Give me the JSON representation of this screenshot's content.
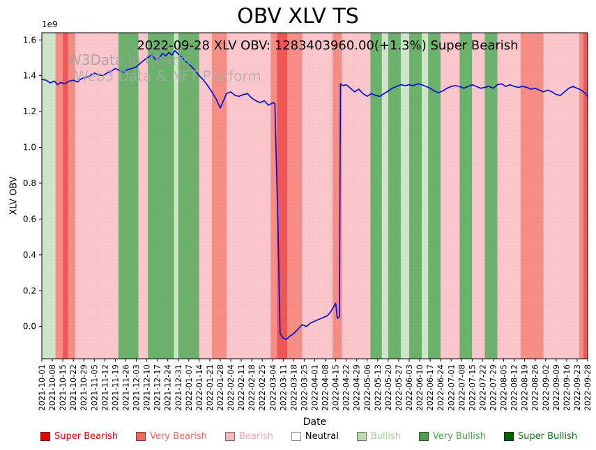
{
  "title": "OBV XLV TS",
  "annotation": "2022-09-28 XLV OBV: 1283403960.00(+1.3%) Super Bearish",
  "watermark": {
    "line1": "W3Data.io Charts",
    "line2": "Web3 Data & NFT Platform"
  },
  "axes": {
    "x_label": "Date",
    "y_label": "XLV OBV",
    "y_offset": "1e9",
    "y_ticks": [
      "0.0",
      "0.2",
      "0.4",
      "0.6",
      "0.8",
      "1.0",
      "1.2",
      "1.4",
      "1.6"
    ]
  },
  "legend": {
    "items": [
      {
        "label": "Super Bearish",
        "color": "#e60000",
        "text_color": "#e60000"
      },
      {
        "label": "Very Bearish",
        "color": "#f4665f",
        "text_color": "#f4665f"
      },
      {
        "label": "Bearish",
        "color": "#f7b6be",
        "text_color": "#f0a4ae"
      },
      {
        "label": "Neutral",
        "color": "#ffffff",
        "text_color": "#000000"
      },
      {
        "label": "Bullish",
        "color": "#b7dcb0",
        "text_color": "#a6cf9e"
      },
      {
        "label": "Very Bullish",
        "color": "#4e9e4e",
        "text_color": "#4e9e4e"
      },
      {
        "label": "Super Bullish",
        "color": "#006400",
        "text_color": "#0a7a0a"
      }
    ]
  },
  "chart_data": {
    "type": "line",
    "title": "OBV XLV TS",
    "xlabel": "Date",
    "ylabel": "XLV OBV",
    "y_unit": "1e9",
    "ylim": [
      -0.18,
      1.64
    ],
    "grid": false,
    "legend_position": "bottom",
    "x_tick_labels": [
      "2021-10-01",
      "2021-10-08",
      "2021-10-15",
      "2021-10-22",
      "2021-10-29",
      "2021-11-05",
      "2021-11-12",
      "2021-11-19",
      "2021-11-26",
      "2021-12-03",
      "2021-12-10",
      "2021-12-17",
      "2021-12-24",
      "2021-12-31",
      "2022-01-07",
      "2022-01-14",
      "2022-01-21",
      "2022-01-28",
      "2022-02-04",
      "2022-02-11",
      "2022-02-18",
      "2022-02-25",
      "2022-03-04",
      "2022-03-11",
      "2022-03-18",
      "2022-03-25",
      "2022-04-01",
      "2022-04-08",
      "2022-04-15",
      "2022-04-22",
      "2022-04-29",
      "2022-05-06",
      "2022-05-13",
      "2022-05-20",
      "2022-05-27",
      "2022-06-03",
      "2022-06-10",
      "2022-06-17",
      "2022-06-24",
      "2022-07-01",
      "2022-07-08",
      "2022-07-15",
      "2022-07-22",
      "2022-07-29",
      "2022-08-05",
      "2022-08-12",
      "2022-08-19",
      "2022-08-26",
      "2022-09-02",
      "2022-09-09",
      "2022-09-16",
      "2022-09-23",
      "2022-09-28"
    ],
    "series": [
      {
        "name": "XLV OBV",
        "color": "#0b0bd6",
        "last_value": 1283403960.0,
        "last_change_pct": 1.3,
        "last_signal": "Super Bearish",
        "points": [
          [
            0,
            1.38
          ],
          [
            0.4,
            1.375
          ],
          [
            0.8,
            1.36
          ],
          [
            1.2,
            1.37
          ],
          [
            1.5,
            1.35
          ],
          [
            1.8,
            1.362
          ],
          [
            2.2,
            1.355
          ],
          [
            2.6,
            1.37
          ],
          [
            3.0,
            1.375
          ],
          [
            3.4,
            1.365
          ],
          [
            3.8,
            1.385
          ],
          [
            4.2,
            1.39
          ],
          [
            4.6,
            1.4
          ],
          [
            5.0,
            1.415
          ],
          [
            5.4,
            1.405
          ],
          [
            5.8,
            1.4
          ],
          [
            6.2,
            1.415
          ],
          [
            6.6,
            1.425
          ],
          [
            7.0,
            1.44
          ],
          [
            7.4,
            1.43
          ],
          [
            7.8,
            1.42
          ],
          [
            8.2,
            1.435
          ],
          [
            8.6,
            1.44
          ],
          [
            9.0,
            1.45
          ],
          [
            9.4,
            1.47
          ],
          [
            9.8,
            1.49
          ],
          [
            10.2,
            1.505
          ],
          [
            10.5,
            1.52
          ],
          [
            10.8,
            1.49
          ],
          [
            11.2,
            1.5
          ],
          [
            11.5,
            1.525
          ],
          [
            11.8,
            1.51
          ],
          [
            12.1,
            1.53
          ],
          [
            12.4,
            1.515
          ],
          [
            12.7,
            1.54
          ],
          [
            13.0,
            1.52
          ],
          [
            13.4,
            1.5
          ],
          [
            13.8,
            1.475
          ],
          [
            14.2,
            1.455
          ],
          [
            14.6,
            1.43
          ],
          [
            15.0,
            1.4
          ],
          [
            15.4,
            1.375
          ],
          [
            15.8,
            1.345
          ],
          [
            16.2,
            1.31
          ],
          [
            16.6,
            1.27
          ],
          [
            17.0,
            1.22
          ],
          [
            17.3,
            1.26
          ],
          [
            17.6,
            1.3
          ],
          [
            18.0,
            1.31
          ],
          [
            18.4,
            1.29
          ],
          [
            18.8,
            1.285
          ],
          [
            19.2,
            1.295
          ],
          [
            19.6,
            1.3
          ],
          [
            20.0,
            1.275
          ],
          [
            20.4,
            1.26
          ],
          [
            20.8,
            1.25
          ],
          [
            21.2,
            1.26
          ],
          [
            21.6,
            1.235
          ],
          [
            22.0,
            1.25
          ],
          [
            22.2,
            1.245
          ],
          [
            22.5,
            0.55
          ],
          [
            22.7,
            -0.04
          ],
          [
            23.0,
            -0.065
          ],
          [
            23.3,
            -0.072
          ],
          [
            23.6,
            -0.055
          ],
          [
            24.0,
            -0.04
          ],
          [
            24.4,
            -0.015
          ],
          [
            24.8,
            0.01
          ],
          [
            25.2,
            0.0
          ],
          [
            25.6,
            0.02
          ],
          [
            26.0,
            0.03
          ],
          [
            26.4,
            0.04
          ],
          [
            26.8,
            0.05
          ],
          [
            27.2,
            0.06
          ],
          [
            27.5,
            0.08
          ],
          [
            27.8,
            0.11
          ],
          [
            28.0,
            0.13
          ],
          [
            28.15,
            0.045
          ],
          [
            28.35,
            0.055
          ],
          [
            28.45,
            1.355
          ],
          [
            28.7,
            1.345
          ],
          [
            29.0,
            1.35
          ],
          [
            29.4,
            1.33
          ],
          [
            29.8,
            1.31
          ],
          [
            30.2,
            1.325
          ],
          [
            30.6,
            1.3
          ],
          [
            31.0,
            1.285
          ],
          [
            31.4,
            1.3
          ],
          [
            31.8,
            1.29
          ],
          [
            32.2,
            1.285
          ],
          [
            32.6,
            1.3
          ],
          [
            33.0,
            1.315
          ],
          [
            33.4,
            1.33
          ],
          [
            33.8,
            1.34
          ],
          [
            34.2,
            1.35
          ],
          [
            34.6,
            1.345
          ],
          [
            35.0,
            1.35
          ],
          [
            35.4,
            1.345
          ],
          [
            35.8,
            1.355
          ],
          [
            36.2,
            1.35
          ],
          [
            36.6,
            1.34
          ],
          [
            37.0,
            1.33
          ],
          [
            37.4,
            1.315
          ],
          [
            37.8,
            1.305
          ],
          [
            38.2,
            1.315
          ],
          [
            38.6,
            1.33
          ],
          [
            39.0,
            1.34
          ],
          [
            39.4,
            1.345
          ],
          [
            39.8,
            1.34
          ],
          [
            40.2,
            1.33
          ],
          [
            40.6,
            1.34
          ],
          [
            41.0,
            1.35
          ],
          [
            41.4,
            1.34
          ],
          [
            41.8,
            1.33
          ],
          [
            42.2,
            1.335
          ],
          [
            42.6,
            1.34
          ],
          [
            43.0,
            1.33
          ],
          [
            43.4,
            1.35
          ],
          [
            43.8,
            1.355
          ],
          [
            44.2,
            1.34
          ],
          [
            44.6,
            1.35
          ],
          [
            45.0,
            1.34
          ],
          [
            45.4,
            1.335
          ],
          [
            45.8,
            1.34
          ],
          [
            46.2,
            1.335
          ],
          [
            46.6,
            1.325
          ],
          [
            47.0,
            1.33
          ],
          [
            47.4,
            1.32
          ],
          [
            47.8,
            1.31
          ],
          [
            48.2,
            1.32
          ],
          [
            48.6,
            1.31
          ],
          [
            49.0,
            1.295
          ],
          [
            49.4,
            1.29
          ],
          [
            49.8,
            1.31
          ],
          [
            50.2,
            1.33
          ],
          [
            50.6,
            1.34
          ],
          [
            51.0,
            1.33
          ],
          [
            51.4,
            1.32
          ],
          [
            51.8,
            1.3
          ],
          [
            52.0,
            1.2834
          ]
        ]
      }
    ],
    "signal_bands": {
      "colors": {
        "super_bearish": "#f25555",
        "very_bearish": "#f58e85",
        "bearish": "#fbc7cd",
        "neutral": "#ffffff",
        "bullish": "#cfe6cb",
        "very_bullish": "#6cb26c",
        "super_bullish": "#1b7a1b"
      },
      "ranges": [
        [
          0,
          1.3,
          "bullish"
        ],
        [
          1.3,
          2.0,
          "very_bearish"
        ],
        [
          2.0,
          2.5,
          "super_bearish"
        ],
        [
          2.5,
          3.2,
          "very_bearish"
        ],
        [
          3.2,
          7.3,
          "bearish"
        ],
        [
          7.3,
          9.2,
          "very_bullish"
        ],
        [
          9.2,
          10.1,
          "bearish"
        ],
        [
          10.1,
          12.6,
          "very_bullish"
        ],
        [
          12.6,
          13.0,
          "bullish"
        ],
        [
          13.0,
          15.0,
          "very_bullish"
        ],
        [
          15.0,
          16.2,
          "bearish"
        ],
        [
          16.2,
          17.6,
          "very_bearish"
        ],
        [
          17.6,
          21.8,
          "bearish"
        ],
        [
          21.8,
          22.4,
          "very_bearish"
        ],
        [
          22.4,
          23.4,
          "super_bearish"
        ],
        [
          23.4,
          24.8,
          "very_bearish"
        ],
        [
          24.8,
          27.7,
          "bearish"
        ],
        [
          27.7,
          28.6,
          "very_bearish"
        ],
        [
          28.6,
          31.3,
          "bearish"
        ],
        [
          31.3,
          32.4,
          "very_bullish"
        ],
        [
          32.4,
          33.0,
          "bullish"
        ],
        [
          33.0,
          34.2,
          "very_bullish"
        ],
        [
          34.2,
          35.0,
          "bullish"
        ],
        [
          35.0,
          36.2,
          "very_bullish"
        ],
        [
          36.2,
          36.8,
          "bullish"
        ],
        [
          36.8,
          38.0,
          "very_bullish"
        ],
        [
          38.0,
          39.8,
          "bearish"
        ],
        [
          39.8,
          41.0,
          "very_bullish"
        ],
        [
          41.0,
          42.2,
          "bearish"
        ],
        [
          42.2,
          43.4,
          "very_bullish"
        ],
        [
          43.4,
          45.6,
          "bearish"
        ],
        [
          45.6,
          47.8,
          "very_bearish"
        ],
        [
          47.8,
          51.2,
          "bearish"
        ],
        [
          51.2,
          51.6,
          "very_bearish"
        ],
        [
          51.6,
          52.0,
          "super_bearish"
        ]
      ]
    }
  }
}
